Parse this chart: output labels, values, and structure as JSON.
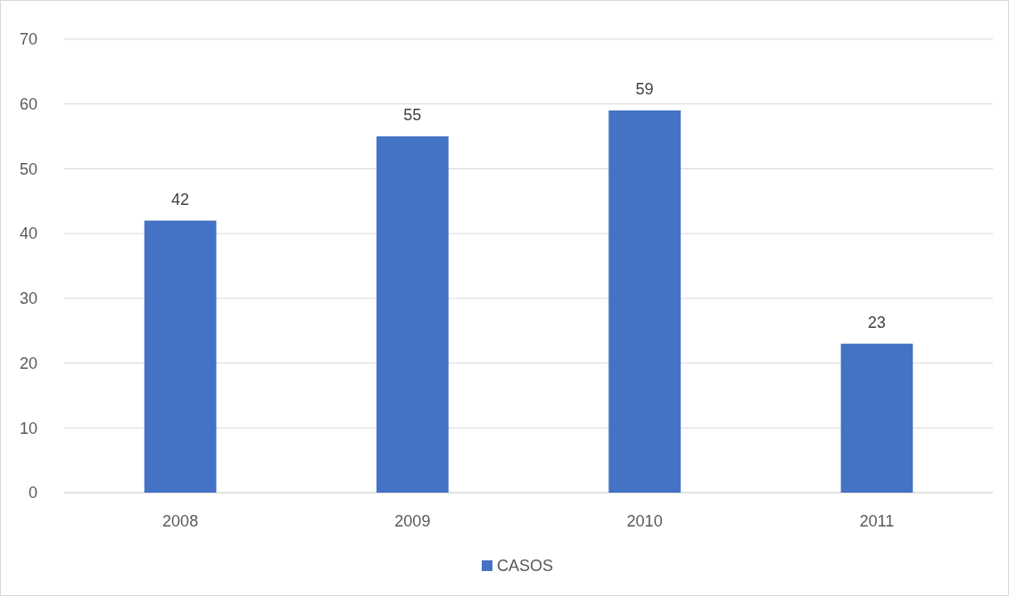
{
  "chart_data": {
    "type": "bar",
    "categories": [
      "2008",
      "2009",
      "2010",
      "2011"
    ],
    "series": [
      {
        "name": "CASOS",
        "color": "#4472c4",
        "values": [
          42,
          55,
          59,
          23
        ]
      }
    ],
    "ylim": [
      0,
      70
    ],
    "yticks": [
      0,
      10,
      20,
      30,
      40,
      50,
      60,
      70
    ],
    "grid": "y",
    "legend": "bottom",
    "data_labels": true
  }
}
